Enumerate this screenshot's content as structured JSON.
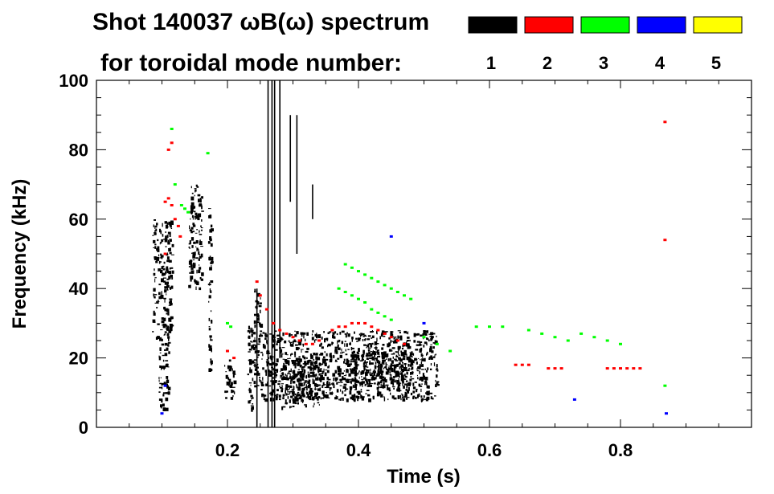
{
  "chart_data": {
    "type": "heatmap",
    "title": "Shot 140037 ωB(ω) spectrum",
    "subtitle": "for toroidal mode number:",
    "xlabel": "Time (s)",
    "ylabel": "Frequency (kHz)",
    "xlim": [
      0.0,
      1.0
    ],
    "ylim": [
      0,
      100
    ],
    "x_ticks": [
      {
        "value": 0.2,
        "label": "0.2"
      },
      {
        "value": 0.4,
        "label": "0.4"
      },
      {
        "value": 0.6,
        "label": "0.6"
      },
      {
        "value": 0.8,
        "label": "0.8"
      }
    ],
    "y_ticks": [
      {
        "value": 0,
        "label": "0"
      },
      {
        "value": 20,
        "label": "20"
      },
      {
        "value": 40,
        "label": "40"
      },
      {
        "value": 60,
        "label": "60"
      },
      {
        "value": 80,
        "label": "80"
      },
      {
        "value": 100,
        "label": "100"
      }
    ],
    "legend": {
      "placement": "top-right",
      "entries": [
        {
          "label": "1",
          "color": "#000000"
        },
        {
          "label": "2",
          "color": "#ff0000"
        },
        {
          "label": "3",
          "color": "#00ff00"
        },
        {
          "label": "4",
          "color": "#0000ff"
        },
        {
          "label": "5",
          "color": "#ffff00"
        }
      ]
    },
    "series": [
      {
        "mode": "1",
        "color": "#000000",
        "regions": [
          [
            0.085,
            0.115,
            25,
            60
          ],
          [
            0.095,
            0.11,
            5,
            25
          ],
          [
            0.14,
            0.16,
            40,
            70
          ],
          [
            0.17,
            0.175,
            15,
            65
          ],
          [
            0.195,
            0.21,
            8,
            20
          ],
          [
            0.23,
            0.24,
            5,
            30
          ],
          [
            0.24,
            0.25,
            12,
            40
          ],
          [
            0.25,
            0.52,
            8,
            28
          ],
          [
            0.28,
            0.34,
            6,
            20
          ],
          [
            0.38,
            0.48,
            12,
            22
          ]
        ],
        "lines": [
          [
            0.262,
            0,
            100
          ],
          [
            0.268,
            0,
            100
          ],
          [
            0.272,
            0,
            100
          ],
          [
            0.28,
            20,
            100
          ],
          [
            0.296,
            65,
            90
          ],
          [
            0.306,
            50,
            90
          ],
          [
            0.245,
            0,
            40
          ],
          [
            0.33,
            60,
            70
          ]
        ]
      },
      {
        "mode": "2",
        "color": "#ff0000",
        "points": [
          [
            0.105,
            65
          ],
          [
            0.11,
            66
          ],
          [
            0.115,
            64
          ],
          [
            0.12,
            60
          ],
          [
            0.125,
            58
          ],
          [
            0.128,
            55
          ],
          [
            0.11,
            80
          ],
          [
            0.115,
            82
          ],
          [
            0.105,
            50
          ],
          [
            0.2,
            22
          ],
          [
            0.21,
            20
          ],
          [
            0.245,
            42
          ],
          [
            0.25,
            38
          ],
          [
            0.26,
            34
          ],
          [
            0.27,
            30
          ],
          [
            0.28,
            28
          ],
          [
            0.29,
            27
          ],
          [
            0.3,
            26
          ],
          [
            0.31,
            25
          ],
          [
            0.32,
            24
          ],
          [
            0.33,
            24
          ],
          [
            0.34,
            25
          ],
          [
            0.36,
            28
          ],
          [
            0.37,
            29
          ],
          [
            0.38,
            29
          ],
          [
            0.39,
            30
          ],
          [
            0.4,
            30
          ],
          [
            0.41,
            30
          ],
          [
            0.42,
            29
          ],
          [
            0.43,
            28
          ],
          [
            0.44,
            27
          ],
          [
            0.45,
            26
          ],
          [
            0.46,
            25
          ],
          [
            0.47,
            24
          ],
          [
            0.64,
            18
          ],
          [
            0.65,
            18
          ],
          [
            0.66,
            18
          ],
          [
            0.69,
            17
          ],
          [
            0.7,
            17
          ],
          [
            0.71,
            17
          ],
          [
            0.78,
            17
          ],
          [
            0.79,
            17
          ],
          [
            0.8,
            17
          ],
          [
            0.81,
            17
          ],
          [
            0.82,
            17
          ],
          [
            0.83,
            17
          ],
          [
            0.868,
            88
          ],
          [
            0.868,
            54
          ]
        ]
      },
      {
        "mode": "3",
        "color": "#00ff00",
        "points": [
          [
            0.115,
            86
          ],
          [
            0.12,
            70
          ],
          [
            0.13,
            64
          ],
          [
            0.14,
            62
          ],
          [
            0.135,
            63
          ],
          [
            0.17,
            79
          ],
          [
            0.2,
            30
          ],
          [
            0.205,
            29
          ],
          [
            0.38,
            47
          ],
          [
            0.39,
            46
          ],
          [
            0.4,
            45
          ],
          [
            0.41,
            44
          ],
          [
            0.42,
            43
          ],
          [
            0.43,
            42
          ],
          [
            0.44,
            41
          ],
          [
            0.45,
            40
          ],
          [
            0.46,
            39
          ],
          [
            0.47,
            38
          ],
          [
            0.48,
            37
          ],
          [
            0.37,
            40
          ],
          [
            0.38,
            39
          ],
          [
            0.39,
            38
          ],
          [
            0.4,
            37
          ],
          [
            0.41,
            36
          ],
          [
            0.42,
            34
          ],
          [
            0.43,
            33
          ],
          [
            0.44,
            32
          ],
          [
            0.45,
            31
          ],
          [
            0.5,
            26
          ],
          [
            0.52,
            24
          ],
          [
            0.54,
            22
          ],
          [
            0.58,
            29
          ],
          [
            0.6,
            29
          ],
          [
            0.62,
            29
          ],
          [
            0.66,
            28
          ],
          [
            0.68,
            27
          ],
          [
            0.7,
            26
          ],
          [
            0.72,
            25
          ],
          [
            0.74,
            27
          ],
          [
            0.76,
            26
          ],
          [
            0.78,
            25
          ],
          [
            0.8,
            24
          ],
          [
            0.868,
            12
          ]
        ]
      },
      {
        "mode": "4",
        "color": "#0000ff",
        "points": [
          [
            0.105,
            12
          ],
          [
            0.1,
            4
          ],
          [
            0.45,
            55
          ],
          [
            0.5,
            30
          ],
          [
            0.73,
            8
          ],
          [
            0.87,
            4
          ]
        ]
      },
      {
        "mode": "5",
        "color": "#ffff00",
        "points": []
      }
    ]
  }
}
